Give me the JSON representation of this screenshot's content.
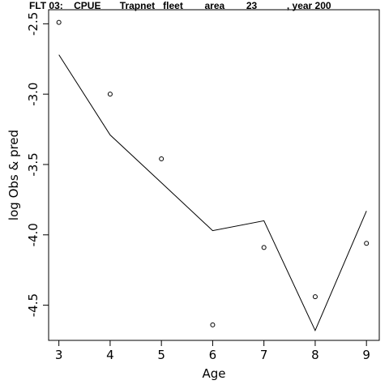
{
  "chart_data": {
    "type": "line",
    "title": "FLT 03:    CPUE       Trapnet   fleet        area        23           , year 200",
    "xlabel": "Age",
    "ylabel": "log Obs & pred",
    "x": [
      3,
      4,
      5,
      6,
      7,
      8,
      9
    ],
    "xlim": [
      2.8,
      9.25
    ],
    "ylim": [
      -4.75,
      -2.4
    ],
    "xticks": [
      3,
      4,
      5,
      6,
      7,
      8,
      9
    ],
    "yticks": [
      -2.5,
      -3.0,
      -3.5,
      -4.0,
      -4.5
    ],
    "ytick_labels": [
      "-2.5",
      "-3.0",
      "-3.5",
      "-4.0",
      "-4.5"
    ],
    "series": [
      {
        "style": "points",
        "values": [
          -2.49,
          -3.0,
          -3.46,
          -4.64,
          -4.09,
          -4.44,
          -4.06
        ]
      },
      {
        "style": "line",
        "values": [
          -2.72,
          -3.29,
          -3.63,
          -3.97,
          -3.9,
          -4.68,
          -3.83
        ]
      }
    ],
    "grid": false,
    "legend": "none",
    "colors": {
      "marks": "#000000",
      "background": "#ffffff"
    }
  }
}
